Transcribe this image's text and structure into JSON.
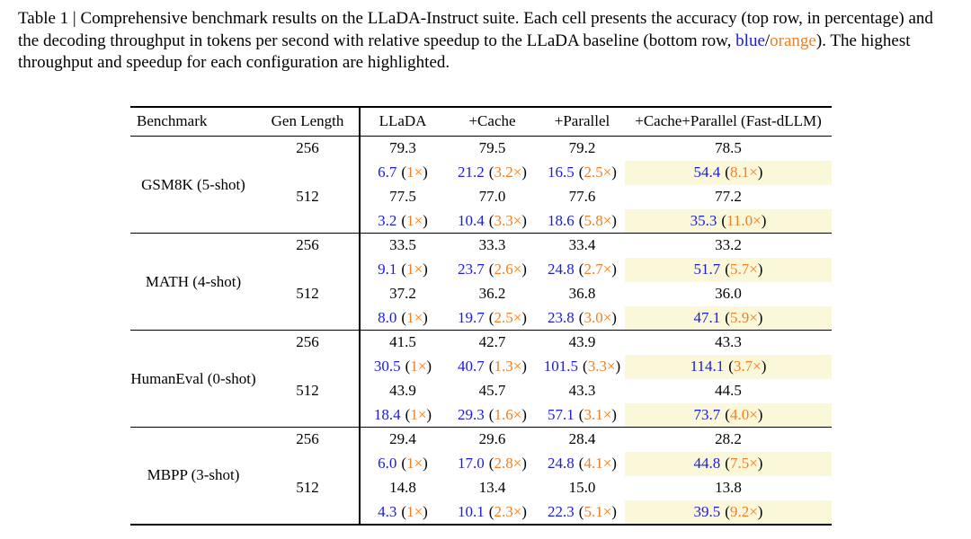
{
  "colors": {
    "blue": "#1a1ae6",
    "orange": "#ef7f28",
    "highlight": "#fbf8d9",
    "text": "#000000"
  },
  "caption": {
    "parts": [
      {
        "text": "Table 1 | Comprehensive benchmark results on the LLaDA-Instruct suite. Each cell presents the accuracy (top row, in percentage) and the decoding throughput in tokens per second with relative speedup to the LLaDA baseline (bottom row, ",
        "color": "black"
      },
      {
        "text": "blue",
        "color": "blue"
      },
      {
        "text": "/",
        "color": "black"
      },
      {
        "text": "orange",
        "color": "orange"
      },
      {
        "text": "). The highest throughput and speedup for each configuration are highlighted.",
        "color": "black"
      }
    ]
  },
  "table": {
    "columns": [
      "Benchmark",
      "Gen Length",
      "LLaDA",
      "+Cache",
      "+Parallel",
      "+Cache+Parallel (Fast-dLLM)"
    ],
    "format": {
      "open": "(",
      "close": ")",
      "times": "×"
    },
    "groups": [
      {
        "benchmark": "GSM8K (5-shot)",
        "rows": [
          {
            "gen_length": "256",
            "accuracy": [
              "79.3",
              "79.5",
              "79.2",
              "78.5"
            ],
            "throughput": [
              {
                "tps": "6.7",
                "speedup": "1",
                "highlight": false
              },
              {
                "tps": "21.2",
                "speedup": "3.2",
                "highlight": false
              },
              {
                "tps": "16.5",
                "speedup": "2.5",
                "highlight": false
              },
              {
                "tps": "54.4",
                "speedup": "8.1",
                "highlight": true
              }
            ]
          },
          {
            "gen_length": "512",
            "accuracy": [
              "77.5",
              "77.0",
              "77.6",
              "77.2"
            ],
            "throughput": [
              {
                "tps": "3.2",
                "speedup": "1",
                "highlight": false
              },
              {
                "tps": "10.4",
                "speedup": "3.3",
                "highlight": false
              },
              {
                "tps": "18.6",
                "speedup": "5.8",
                "highlight": false
              },
              {
                "tps": "35.3",
                "speedup": "11.0",
                "highlight": true
              }
            ]
          }
        ]
      },
      {
        "benchmark": "MATH (4-shot)",
        "rows": [
          {
            "gen_length": "256",
            "accuracy": [
              "33.5",
              "33.3",
              "33.4",
              "33.2"
            ],
            "throughput": [
              {
                "tps": "9.1",
                "speedup": "1",
                "highlight": false
              },
              {
                "tps": "23.7",
                "speedup": "2.6",
                "highlight": false
              },
              {
                "tps": "24.8",
                "speedup": "2.7",
                "highlight": false
              },
              {
                "tps": "51.7",
                "speedup": "5.7",
                "highlight": true
              }
            ]
          },
          {
            "gen_length": "512",
            "accuracy": [
              "37.2",
              "36.2",
              "36.8",
              "36.0"
            ],
            "throughput": [
              {
                "tps": "8.0",
                "speedup": "1",
                "highlight": false
              },
              {
                "tps": "19.7",
                "speedup": "2.5",
                "highlight": false
              },
              {
                "tps": "23.8",
                "speedup": "3.0",
                "highlight": false
              },
              {
                "tps": "47.1",
                "speedup": "5.9",
                "highlight": true
              }
            ]
          }
        ]
      },
      {
        "benchmark": "HumanEval (0-shot)",
        "rows": [
          {
            "gen_length": "256",
            "accuracy": [
              "41.5",
              "42.7",
              "43.9",
              "43.3"
            ],
            "throughput": [
              {
                "tps": "30.5",
                "speedup": "1",
                "highlight": false
              },
              {
                "tps": "40.7",
                "speedup": "1.3",
                "highlight": false
              },
              {
                "tps": "101.5",
                "speedup": "3.3",
                "highlight": false
              },
              {
                "tps": "114.1",
                "speedup": "3.7",
                "highlight": true
              }
            ]
          },
          {
            "gen_length": "512",
            "accuracy": [
              "43.9",
              "45.7",
              "43.3",
              "44.5"
            ],
            "throughput": [
              {
                "tps": "18.4",
                "speedup": "1",
                "highlight": false
              },
              {
                "tps": "29.3",
                "speedup": "1.6",
                "highlight": false
              },
              {
                "tps": "57.1",
                "speedup": "3.1",
                "highlight": false
              },
              {
                "tps": "73.7",
                "speedup": "4.0",
                "highlight": true
              }
            ]
          }
        ]
      },
      {
        "benchmark": "MBPP (3-shot)",
        "rows": [
          {
            "gen_length": "256",
            "accuracy": [
              "29.4",
              "29.6",
              "28.4",
              "28.2"
            ],
            "throughput": [
              {
                "tps": "6.0",
                "speedup": "1",
                "highlight": false
              },
              {
                "tps": "17.0",
                "speedup": "2.8",
                "highlight": false
              },
              {
                "tps": "24.8",
                "speedup": "4.1",
                "highlight": false
              },
              {
                "tps": "44.8",
                "speedup": "7.5",
                "highlight": true
              }
            ]
          },
          {
            "gen_length": "512",
            "accuracy": [
              "14.8",
              "13.4",
              "15.0",
              "13.8"
            ],
            "throughput": [
              {
                "tps": "4.3",
                "speedup": "1",
                "highlight": false
              },
              {
                "tps": "10.1",
                "speedup": "2.3",
                "highlight": false
              },
              {
                "tps": "22.3",
                "speedup": "5.1",
                "highlight": false
              },
              {
                "tps": "39.5",
                "speedup": "9.2",
                "highlight": true
              }
            ]
          }
        ]
      }
    ]
  }
}
